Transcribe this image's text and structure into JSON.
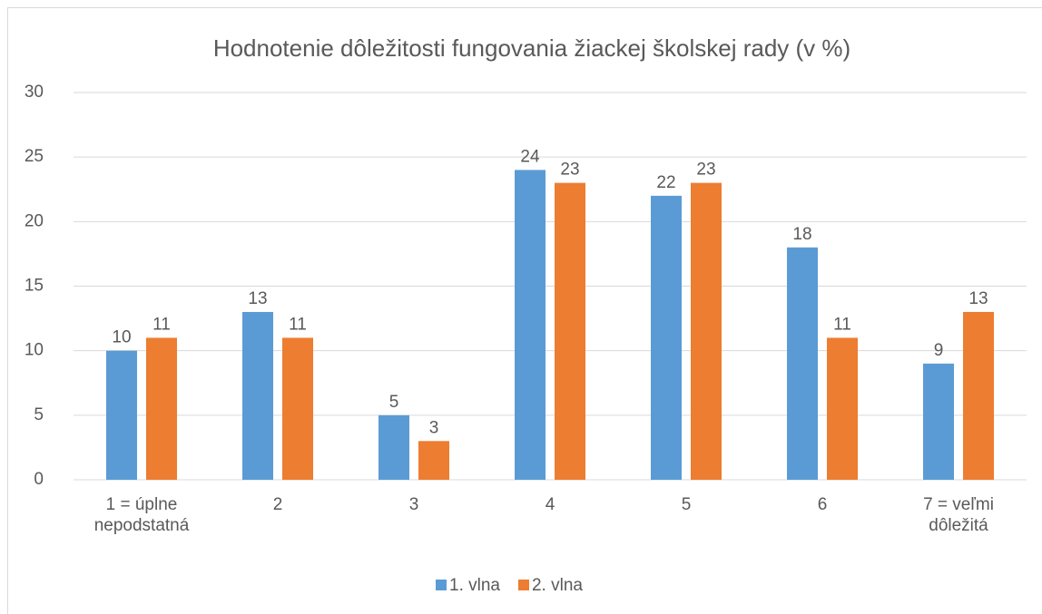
{
  "chart_data": {
    "type": "bar",
    "title": "Hodnotenie dôležitosti fungovania žiackej školskej rady (v %)",
    "categories": [
      "1 = úplne nepodstatná",
      "2",
      "3",
      "4",
      "5",
      "6",
      "7 = veľmi dôležitá"
    ],
    "series": [
      {
        "name": "1. vlna",
        "color": "#5b9bd5",
        "values": [
          10,
          13,
          5,
          24,
          22,
          18,
          9
        ]
      },
      {
        "name": "2. vlna",
        "color": "#ed7d31",
        "values": [
          11,
          11,
          3,
          23,
          23,
          11,
          13
        ]
      }
    ],
    "ylim": [
      0,
      30
    ],
    "yticks": [
      0,
      5,
      10,
      15,
      20,
      25,
      30
    ],
    "grid": true,
    "legend": "bottom"
  }
}
